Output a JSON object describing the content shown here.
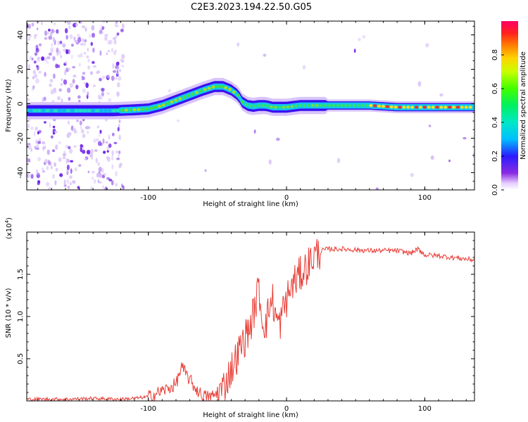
{
  "title": "C2E3.2023.194.22.50.G05",
  "chart_data": [
    {
      "type": "heatmap",
      "name": "spectrogram",
      "xlabel": "Height of straight line (km)",
      "ylabel": "Frequency (Hz)",
      "xlim": [
        -188,
        136
      ],
      "ylim": [
        -50,
        48
      ],
      "xticks": [
        -100,
        0,
        100
      ],
      "yticks": [
        -40,
        -20,
        0,
        20,
        40
      ],
      "ridge": {
        "x": [
          -188,
          -160,
          -140,
          -125,
          -110,
          -100,
          -90,
          -80,
          -70,
          -60,
          -52,
          -46,
          -40,
          -35,
          -32,
          -28,
          -24,
          -20,
          -15,
          -10,
          -5,
          0,
          10,
          20,
          40,
          60,
          80,
          100,
          120,
          136
        ],
        "y": [
          -4,
          -4,
          -4,
          -4,
          -3.5,
          -3,
          -1,
          2,
          5,
          8,
          10,
          10,
          8,
          5,
          1,
          -1,
          -1.5,
          -1,
          -1,
          -2,
          -2,
          -2,
          -1,
          -1,
          -1,
          -1,
          -2,
          -2,
          -2,
          -2
        ]
      },
      "colorbar": {
        "label": "Normalized spectral amplitude",
        "range": [
          0,
          1
        ],
        "ticks": [
          "0.0",
          "0.2",
          "0.4",
          "0.6",
          "0.8"
        ]
      }
    },
    {
      "type": "line",
      "name": "snr",
      "xlabel": "Height of straight line (km)",
      "ylabel": "SNR (10 * v/v)",
      "exponent_label": "(x10",
      "exponent": "4",
      "xlim": [
        -188,
        136
      ],
      "ylim": [
        0,
        2.0
      ],
      "xticks": [
        -100,
        0,
        100
      ],
      "yticks": [
        "0.5",
        "1.0",
        "1.5"
      ],
      "color": "#e8413a",
      "series": {
        "x": [
          -188,
          -160,
          -140,
          -120,
          -110,
          -100,
          -95,
          -90,
          -85,
          -80,
          -76,
          -72,
          -70,
          -66,
          -62,
          -58,
          -55,
          -50,
          -46,
          -42,
          -38,
          -34,
          -30,
          -26,
          -23,
          -20,
          -18,
          -15,
          -12,
          -10,
          -8,
          -5,
          -2,
          0,
          5,
          10,
          15,
          20,
          25,
          30,
          40,
          60,
          80,
          90,
          95,
          100,
          110,
          120,
          136
        ],
        "y": [
          0.02,
          0.02,
          0.03,
          0.02,
          0.03,
          0.05,
          0.08,
          0.12,
          0.15,
          0.2,
          0.4,
          0.3,
          0.25,
          0.15,
          0.08,
          0.05,
          0.05,
          0.08,
          0.15,
          0.3,
          0.45,
          0.6,
          0.75,
          0.9,
          1.1,
          1.35,
          1.0,
          0.9,
          1.15,
          1.2,
          1.0,
          0.9,
          1.1,
          1.2,
          1.4,
          1.5,
          1.6,
          1.72,
          1.78,
          1.8,
          1.8,
          1.78,
          1.78,
          1.75,
          1.8,
          1.73,
          1.72,
          1.7,
          1.67
        ]
      }
    }
  ]
}
